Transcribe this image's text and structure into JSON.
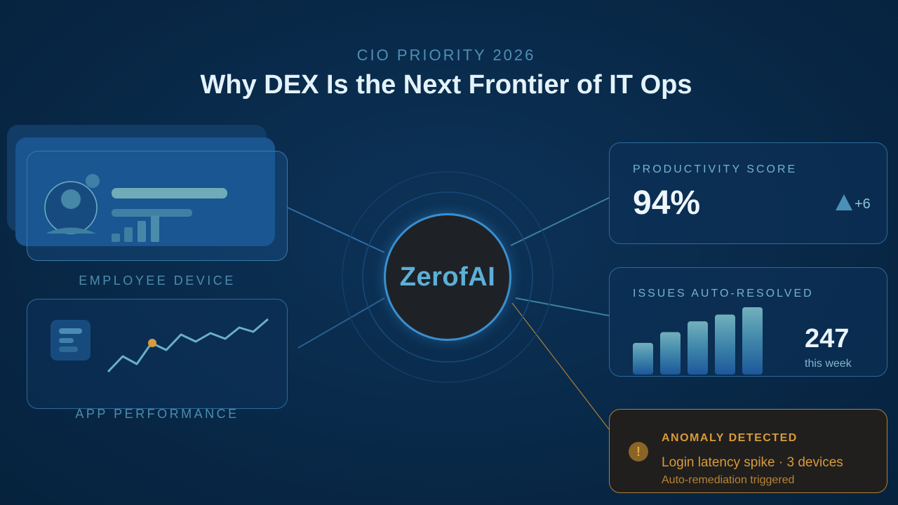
{
  "header": {
    "eyebrow": "CIO PRIORITY 2026",
    "title": "Why DEX Is the Next Frontier of IT Ops"
  },
  "left": {
    "employee_device_label": "EMPLOYEE DEVICE",
    "app_performance_label": "APP PERFORMANCE"
  },
  "center": {
    "logo_text": "ZerofAI"
  },
  "productivity": {
    "label": "PRODUCTIVITY SCORE",
    "value": "94%",
    "delta": "+6",
    "delta_icon": "triangle-up-icon"
  },
  "issues": {
    "label": "ISSUES AUTO-RESOLVED",
    "value": "247",
    "sub": "this week",
    "bar_levels": [
      0.47,
      0.63,
      0.79,
      0.89,
      1.0
    ]
  },
  "anomaly": {
    "title": "ANOMALY DETECTED",
    "detail": "Login latency spike · 3 devices",
    "sub": "Auto-remediation triggered",
    "icon": "warning-icon"
  },
  "colors": {
    "accent": "#3f8fd0",
    "teal": "#72b0bc",
    "warning": "#d89a3a",
    "background": "#082847"
  }
}
